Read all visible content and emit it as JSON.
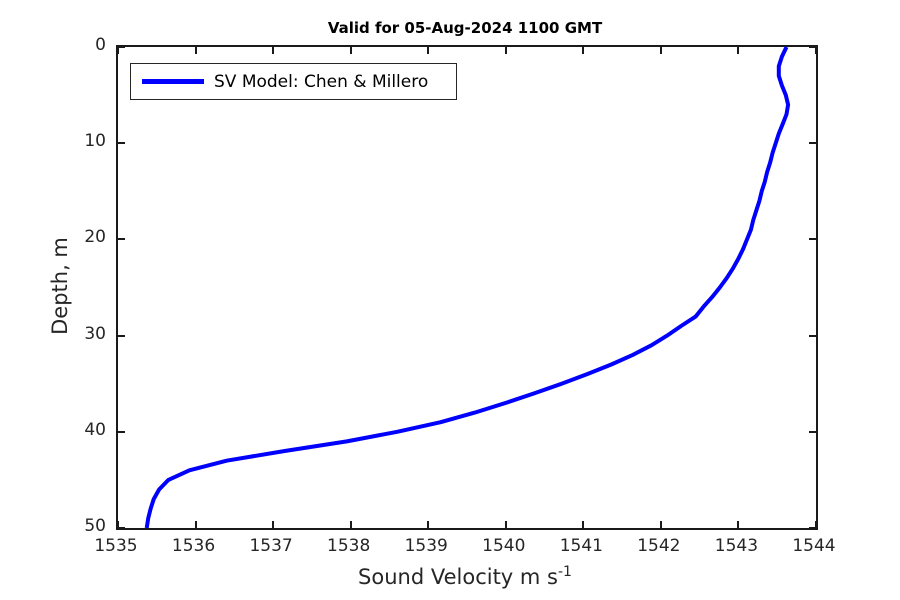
{
  "chart_data": {
    "type": "line",
    "title": "Valid for 05-Aug-2024 1100 GMT",
    "xlabel": "Sound Velocity m s",
    "xlabel_sup": "-1",
    "ylabel": "Depth, m",
    "xlim": [
      1535,
      1544
    ],
    "ylim": [
      0,
      50
    ],
    "y_axis_direction": "reversed",
    "grid": false,
    "box": true,
    "x_ticks": [
      1535,
      1536,
      1537,
      1538,
      1539,
      1540,
      1541,
      1542,
      1543,
      1544
    ],
    "y_ticks": [
      0,
      10,
      20,
      30,
      40,
      50
    ],
    "legend": {
      "position": "top-left-inside",
      "entries": [
        {
          "label": "SV Model: Chen & Millero",
          "color": "#0000ff"
        }
      ]
    },
    "series": [
      {
        "name": "SV Model: Chen & Millero",
        "color": "#0000ff",
        "line_width": 4,
        "depth_m": [
          0,
          1,
          2,
          3,
          4,
          5,
          6,
          7,
          8,
          9,
          10,
          11,
          12,
          13,
          14,
          15,
          16,
          17,
          18,
          19,
          20,
          21,
          22,
          23,
          24,
          25,
          26,
          27,
          28,
          29,
          30,
          31,
          32,
          33,
          34,
          35,
          36,
          37,
          38,
          39,
          40,
          41,
          42,
          43,
          44,
          45,
          46,
          47,
          48,
          49,
          50
        ],
        "sound_velocity_ms": [
          1543.62,
          1543.56,
          1543.52,
          1543.52,
          1543.56,
          1543.61,
          1543.64,
          1543.62,
          1543.57,
          1543.52,
          1543.48,
          1543.44,
          1543.41,
          1543.37,
          1543.34,
          1543.3,
          1543.27,
          1543.23,
          1543.19,
          1543.16,
          1543.11,
          1543.06,
          1543.0,
          1542.93,
          1542.85,
          1542.76,
          1542.66,
          1542.55,
          1542.45,
          1542.26,
          1542.08,
          1541.88,
          1541.64,
          1541.36,
          1541.05,
          1540.72,
          1540.37,
          1540.0,
          1539.6,
          1539.16,
          1538.6,
          1537.95,
          1537.15,
          1536.4,
          1535.92,
          1535.65,
          1535.53,
          1535.46,
          1535.42,
          1535.39,
          1535.37
        ]
      }
    ]
  },
  "colors": {
    "line": "#0000ff",
    "axis": "#1a1a1a",
    "tick_text": "#262626",
    "title_text": "#000000",
    "background": "#ffffff"
  }
}
